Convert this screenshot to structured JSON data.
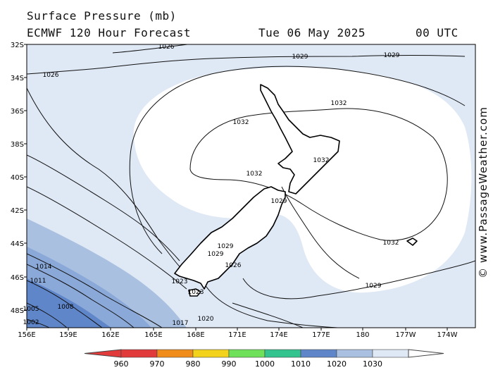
{
  "header": {
    "title": "Surface Pressure (mb)",
    "model": "ECMWF 120 Hour Forecast",
    "date": "Tue 06 May 2025",
    "time": "00 UTC"
  },
  "watermark": "© www.PassageWeather.com",
  "map": {
    "lat_labels": [
      "32S",
      "34S",
      "36S",
      "38S",
      "40S",
      "42S",
      "44S",
      "46S",
      "48S"
    ],
    "lon_labels": [
      "156E",
      "159E",
      "162E",
      "165E",
      "168E",
      "171E",
      "174E",
      "177E",
      "180",
      "177W",
      "174W"
    ],
    "isobar_labels": [
      "1026",
      "1026",
      "1029",
      "1029",
      "1032",
      "1032",
      "1032",
      "1032",
      "1029",
      "1032",
      "1029",
      "1029",
      "1026",
      "1023",
      "1023",
      "1020",
      "1017",
      "1014",
      "1011",
      "1008",
      "1005",
      "1002",
      "1029"
    ]
  },
  "legend": {
    "values": [
      "960",
      "970",
      "980",
      "990",
      "1000",
      "1010",
      "1020",
      "1030"
    ],
    "colors": [
      "#e23b3b",
      "#f08c1a",
      "#f2d21a",
      "#6ee05a",
      "#33c38f",
      "#5f86c9",
      "#a9c0e0",
      "#dfe8f5"
    ]
  }
}
